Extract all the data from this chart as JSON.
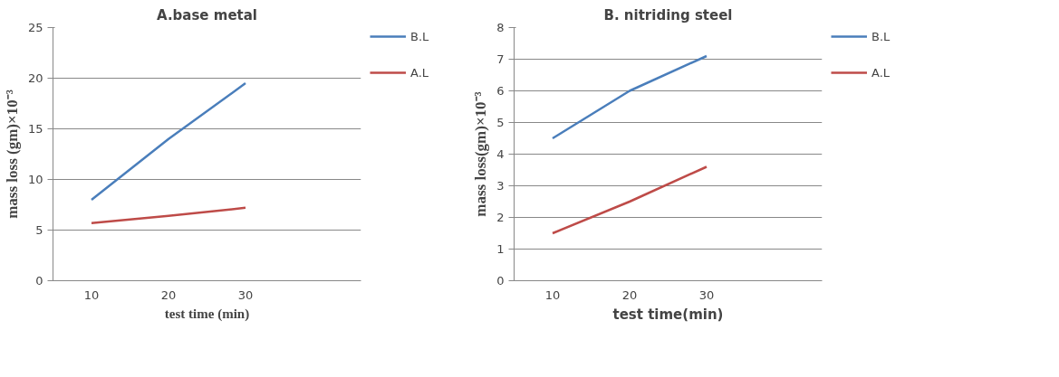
{
  "chart_data": [
    {
      "type": "line",
      "title": "A.base metal",
      "xlabel": "test time (min)",
      "ylabel": "mass loss (gm)×10⁻³",
      "categories": [
        "10",
        "20",
        "30",
        null
      ],
      "series": [
        {
          "name": "B.L",
          "color": "#4a7ebb",
          "values": [
            8,
            14,
            19.5,
            null
          ]
        },
        {
          "name": "A.L",
          "color": "#be4b48",
          "values": [
            5.7,
            6.4,
            7.2,
            null
          ]
        }
      ],
      "ylim": [
        0,
        25
      ],
      "yticks": [
        0,
        5,
        10,
        15,
        20,
        25
      ],
      "grid": "y",
      "legend": "top right",
      "marker": "none",
      "line_style": "solid"
    },
    {
      "type": "line",
      "title": "B. nitriding steel",
      "xlabel": "test time(min)",
      "ylabel": "mass loss(gm)×10⁻³",
      "categories": [
        "10",
        "20",
        "30",
        null
      ],
      "series": [
        {
          "name": "B.L",
          "color": "#4a7ebb",
          "values": [
            4.5,
            6.0,
            7.1,
            null
          ]
        },
        {
          "name": "A.L",
          "color": "#be4b48",
          "values": [
            1.5,
            2.5,
            3.6,
            null
          ]
        }
      ],
      "ylim": [
        0,
        8
      ],
      "yticks": [
        0,
        1,
        2,
        3,
        4,
        5,
        6,
        7,
        8
      ],
      "grid": "y",
      "legend": "top right",
      "marker": "none",
      "line_style": "solid"
    }
  ]
}
